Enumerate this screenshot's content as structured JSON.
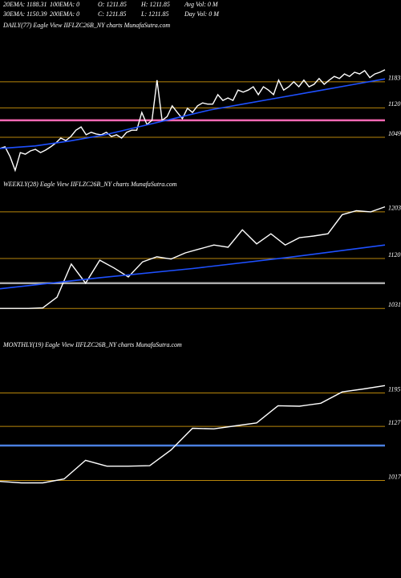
{
  "header": {
    "row1": [
      "20EMA: 1188.31",
      "100EMA: 0",
      "O: 1211.85",
      "H: 1211.85",
      "Avg Vol: 0  M"
    ],
    "row2": [
      "30EMA: 1150.39",
      "200EMA: 0",
      "C: 1211.85",
      "L: 1211.85",
      "Day Vol: 0  M"
    ]
  },
  "chart_data": [
    {
      "type": "line",
      "title": "DAILY(77) Eagle  View  IIFLZC26B_NY charts MunafaSutra.com",
      "ylim": [
        954,
        1303
      ],
      "yticks": [
        1183,
        1120,
        1049
      ],
      "grid": true,
      "grid_color": "#b8860b",
      "reference_lines": [
        {
          "value": 1090,
          "color": "#ff69b4"
        }
      ],
      "series": [
        {
          "color": "#ffffff",
          "values": [
            1022,
            1026,
            1002,
            969,
            1012,
            1008,
            1016,
            1020,
            1012,
            1018,
            1026,
            1035,
            1047,
            1041,
            1051,
            1066,
            1074,
            1055,
            1061,
            1057,
            1055,
            1061,
            1051,
            1055,
            1047,
            1061,
            1066,
            1066,
            1109,
            1080,
            1090,
            1187,
            1090,
            1099,
            1125,
            1109,
            1094,
            1119,
            1109,
            1125,
            1132,
            1129,
            1129,
            1152,
            1138,
            1144,
            1138,
            1163,
            1158,
            1163,
            1171,
            1152,
            1171,
            1163,
            1152,
            1187,
            1163,
            1171,
            1183,
            1171,
            1187,
            1171,
            1177,
            1191,
            1177,
            1187,
            1196,
            1191,
            1202,
            1196,
            1206,
            1202,
            1210,
            1193,
            1202,
            1206,
            1212
          ]
        },
        {
          "color": "#1e50ff",
          "values": [
            1022,
            1028,
            1040,
            1055,
            1075,
            1095,
            1115,
            1130,
            1145,
            1160,
            1175,
            1190
          ]
        }
      ]
    },
    {
      "type": "line",
      "title": "WEEKLY(28) Eagle  View  IIFLZC26B_NY charts MunafaSutra.com",
      "ylim": [
        987,
        1240
      ],
      "yticks": [
        1203,
        1120,
        1031
      ],
      "grid": true,
      "grid_color": "#b8860b",
      "reference_lines": [
        {
          "value": 1076,
          "color": "#aaaaaa"
        }
      ],
      "series": [
        {
          "color": "#ffffff",
          "values": [
            1031,
            1031,
            1031,
            1032,
            1051,
            1110,
            1076,
            1117,
            1103,
            1087,
            1114,
            1123,
            1119,
            1130,
            1137,
            1144,
            1140,
            1171,
            1146,
            1164,
            1144,
            1157,
            1160,
            1164,
            1198,
            1205,
            1203,
            1212
          ]
        },
        {
          "color": "#1e50ff",
          "values": [
            1066,
            1085,
            1102,
            1122,
            1144
          ]
        }
      ]
    },
    {
      "type": "line",
      "title": "MONTHLY(19) Eagle  View  IIFLZC26B_NY charts MunafaSutra.com",
      "ylim": [
        990,
        1279
      ],
      "yticks": [
        1195,
        1127,
        1017
      ],
      "grid": true,
      "grid_color": "#b8860b",
      "reference_lines": [
        {
          "value": 1088,
          "color": "#4a7fe0"
        }
      ],
      "series": [
        {
          "color": "#ffffff",
          "values": [
            1015,
            1012,
            1012,
            1020,
            1058,
            1046,
            1046,
            1047,
            1079,
            1123,
            1122,
            1128,
            1134,
            1169,
            1168,
            1174,
            1197,
            1203,
            1210
          ]
        }
      ]
    }
  ]
}
